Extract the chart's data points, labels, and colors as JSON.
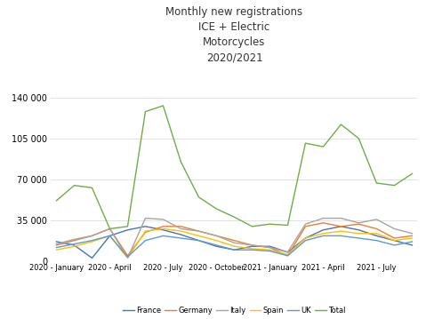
{
  "title": "Monthly new registrations\nICE + Electric\nMotorcycles\n2020/2021",
  "x_labels": [
    "2020 - January",
    "2020 - April",
    "2020 - July",
    "2020 - October",
    "2021 - January",
    "2021 - April",
    "2021 - July"
  ],
  "x_tick_positions": [
    0,
    3,
    6,
    9,
    12,
    15,
    18
  ],
  "series": {
    "France": {
      "color": "#4472C4",
      "data": [
        17000,
        14000,
        3000,
        22000,
        27000,
        30000,
        27000,
        23000,
        18000,
        13000,
        10000,
        13000,
        13000,
        8000,
        20000,
        27000,
        30000,
        27000,
        22000,
        18000,
        14000
      ]
    },
    "Germany": {
      "color": "#ED7D31",
      "data": [
        14000,
        18000,
        22000,
        28000,
        5000,
        25000,
        30000,
        30000,
        26000,
        22000,
        18000,
        14000,
        12000,
        5000,
        30000,
        33000,
        30000,
        32000,
        28000,
        20000,
        22000
      ]
    },
    "Italy": {
      "color": "#A5A5A5",
      "data": [
        15000,
        19000,
        22000,
        28000,
        3000,
        37000,
        36000,
        28000,
        26000,
        22000,
        16000,
        14000,
        12000,
        8000,
        32000,
        37000,
        37000,
        33000,
        36000,
        28000,
        24000
      ]
    },
    "Spain": {
      "color": "#FFC000",
      "data": [
        10000,
        13000,
        17000,
        22000,
        3000,
        26000,
        28000,
        26000,
        22000,
        18000,
        13000,
        11000,
        10000,
        6000,
        20000,
        24000,
        26000,
        24000,
        24000,
        18000,
        20000
      ]
    },
    "UK": {
      "color": "#5B9BD5",
      "data": [
        12000,
        15000,
        18000,
        22000,
        4000,
        18000,
        22000,
        20000,
        18000,
        14000,
        10000,
        10000,
        9000,
        5000,
        18000,
        22000,
        22000,
        20000,
        18000,
        14000,
        17000
      ]
    },
    "Total": {
      "color": "#70AD47",
      "data": [
        52000,
        65000,
        63000,
        28000,
        30000,
        128000,
        133000,
        85000,
        55000,
        45000,
        38000,
        30000,
        32000,
        31000,
        101000,
        98000,
        117000,
        105000,
        67000,
        65000,
        75000
      ]
    }
  },
  "ylim": [
    0,
    147000
  ],
  "yticks": [
    0,
    35000,
    70000,
    105000,
    140000
  ],
  "background_color": "#FFFFFF",
  "grid_color": "#DDDDDD",
  "legend_order": [
    "France",
    "Germany",
    "Italy",
    "Spain",
    "UK",
    "Total"
  ]
}
